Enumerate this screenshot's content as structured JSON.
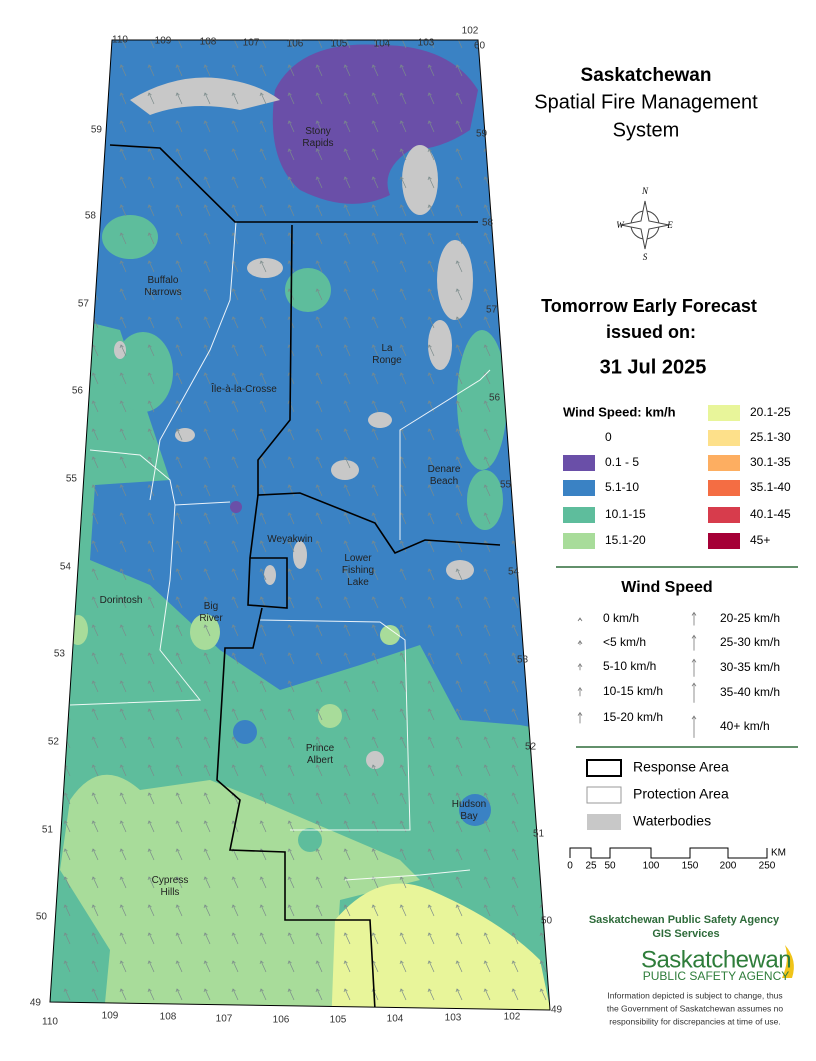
{
  "title": [
    "Saskatchewan",
    "Spatial Fire Management",
    "System"
  ],
  "forecast": {
    "heading": "Tomorrow Early Forecast",
    "issued": "issued on:",
    "date": "31 Jul 2025"
  },
  "compass": [
    "N",
    "E",
    "S",
    "W"
  ],
  "wind_speed_legend": {
    "title": "Wind Speed: km/h",
    "items": [
      {
        "label": "0",
        "color": "#ffffff"
      },
      {
        "label": "0.1 - 5",
        "color": "#6a4fa8"
      },
      {
        "label": "5.1-10",
        "color": "#3a82c4"
      },
      {
        "label": "10.1-15",
        "color": "#5ebd9c"
      },
      {
        "label": "15.1-20",
        "color": "#a8dc9a"
      },
      {
        "label": "20.1-25",
        "color": "#e8f59a"
      },
      {
        "label": "25.1-30",
        "color": "#fde08a"
      },
      {
        "label": "30.1-35",
        "color": "#fdae61"
      },
      {
        "label": "35.1-40",
        "color": "#f46d43"
      },
      {
        "label": "40.1-45",
        "color": "#d73c4c"
      },
      {
        "label": "45+",
        "color": "#a50036"
      }
    ]
  },
  "arrow_legend": {
    "title": "Wind Speed",
    "items": [
      "0 km/h",
      "<5 km/h",
      "5-10 km/h",
      "10-15 km/h",
      "15-20 km/h",
      "20-25 km/h",
      "25-30 km/h",
      "30-35 km/h",
      "35-40 km/h",
      "40+ km/h"
    ]
  },
  "boundary_legend": [
    "Response Area",
    "Protection Area",
    "Waterbodies"
  ],
  "scale": {
    "unit": "KM",
    "ticks": [
      0,
      25,
      50,
      100,
      150,
      200,
      250
    ]
  },
  "agency": {
    "name": "Saskatchewan Public Safety Agency",
    "unit": "GIS  Services",
    "logo": [
      "Saskatchewan",
      "PUBLIC SAFETY AGENCY"
    ],
    "disclaimer": [
      "Information depicted is subject to change, thus",
      "the Government of Saskatchewan assumes no",
      "responsibility for discrepancies at time of use."
    ]
  },
  "places": [
    {
      "lines": [
        "Stony",
        "Rapids"
      ]
    },
    {
      "lines": [
        "Buffalo",
        "Narrows"
      ]
    },
    {
      "lines": [
        "Île-à-la-Crosse"
      ]
    },
    {
      "lines": [
        "La",
        "Ronge"
      ]
    },
    {
      "lines": [
        "Denare",
        "Beach"
      ]
    },
    {
      "lines": [
        "Weyakwin"
      ]
    },
    {
      "lines": [
        "Lower",
        "Fishing",
        "Lake"
      ]
    },
    {
      "lines": [
        "Dorintosh"
      ]
    },
    {
      "lines": [
        "Big",
        "River"
      ]
    },
    {
      "lines": [
        "Prince",
        "Albert"
      ]
    },
    {
      "lines": [
        "Hudson",
        "Bay"
      ]
    },
    {
      "lines": [
        "Cypress",
        "Hills"
      ]
    }
  ],
  "lon_top": [
    110,
    109,
    108,
    107,
    106,
    105,
    104,
    103,
    102
  ],
  "lon_bottom": [
    110,
    109,
    108,
    107,
    106,
    105,
    104,
    103,
    102
  ],
  "lat_left": [
    59,
    58,
    57,
    56,
    55,
    54,
    53,
    52,
    51,
    50,
    49
  ],
  "lat_right": [
    60,
    59,
    58,
    57,
    56,
    55,
    54,
    53,
    52,
    51,
    50,
    49
  ]
}
